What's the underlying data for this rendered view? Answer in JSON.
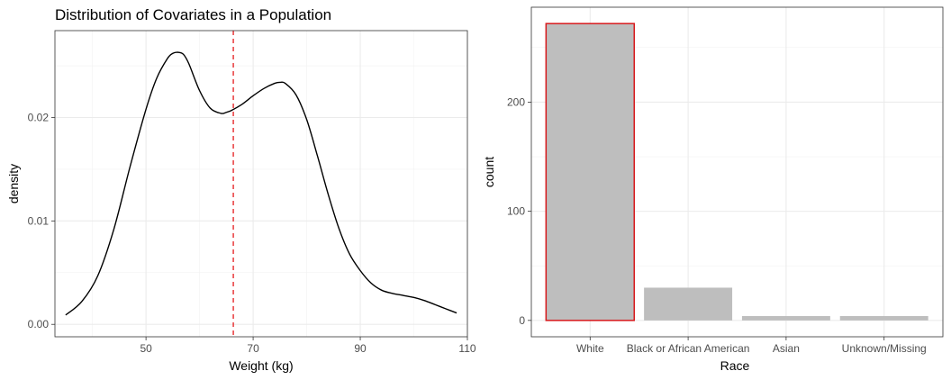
{
  "chart_data": [
    {
      "type": "line",
      "title": "Distribution of Covariates in a Population",
      "xlabel": "Weight (kg)",
      "ylabel": "density",
      "xlim": [
        33,
        110
      ],
      "ylim": [
        -0.0012,
        0.0284
      ],
      "x_ticks": [
        50,
        70,
        90,
        110
      ],
      "y_ticks": [
        0.0,
        0.01,
        0.02
      ],
      "y_tick_labels": [
        "0.00",
        "0.01",
        "0.02"
      ],
      "grid": true,
      "series": [
        {
          "x": [
            35,
            38,
            41,
            44,
            47,
            50,
            52,
            54,
            55,
            56,
            57,
            58,
            60,
            62,
            64,
            65,
            66,
            68,
            70,
            72,
            74,
            75,
            76,
            78,
            80,
            82,
            84,
            86,
            88,
            90,
            92,
            94,
            96,
            98,
            100,
            102,
            104,
            106,
            108
          ],
          "y": [
            0.0009,
            0.0022,
            0.0047,
            0.0092,
            0.0152,
            0.0208,
            0.0238,
            0.0257,
            0.0262,
            0.0263,
            0.0261,
            0.0252,
            0.0226,
            0.0209,
            0.0204,
            0.0205,
            0.0207,
            0.0213,
            0.0221,
            0.0228,
            0.0233,
            0.0234,
            0.0233,
            0.0222,
            0.0198,
            0.0163,
            0.0126,
            0.0093,
            0.0068,
            0.0052,
            0.004,
            0.0033,
            0.003,
            0.0028,
            0.0026,
            0.0023,
            0.0019,
            0.0015,
            0.0011
          ],
          "color": "#000000"
        }
      ],
      "reference_line": {
        "x": 66.3,
        "style": "dashed",
        "color": "#e41a1c"
      }
    },
    {
      "type": "bar",
      "xlabel": "Race",
      "ylabel": "count",
      "categories": [
        "White",
        "Black or African American",
        "Asian",
        "Unknown/Missing"
      ],
      "values": [
        272,
        30,
        4,
        4
      ],
      "ylim": [
        -15,
        287
      ],
      "y_ticks": [
        0,
        100,
        200
      ],
      "y_tick_labels": [
        "0",
        "100",
        "200"
      ],
      "grid": true,
      "bar_fill": "#bebebe",
      "highlight": {
        "category": "White",
        "outline_color": "#d7191c"
      }
    }
  ]
}
